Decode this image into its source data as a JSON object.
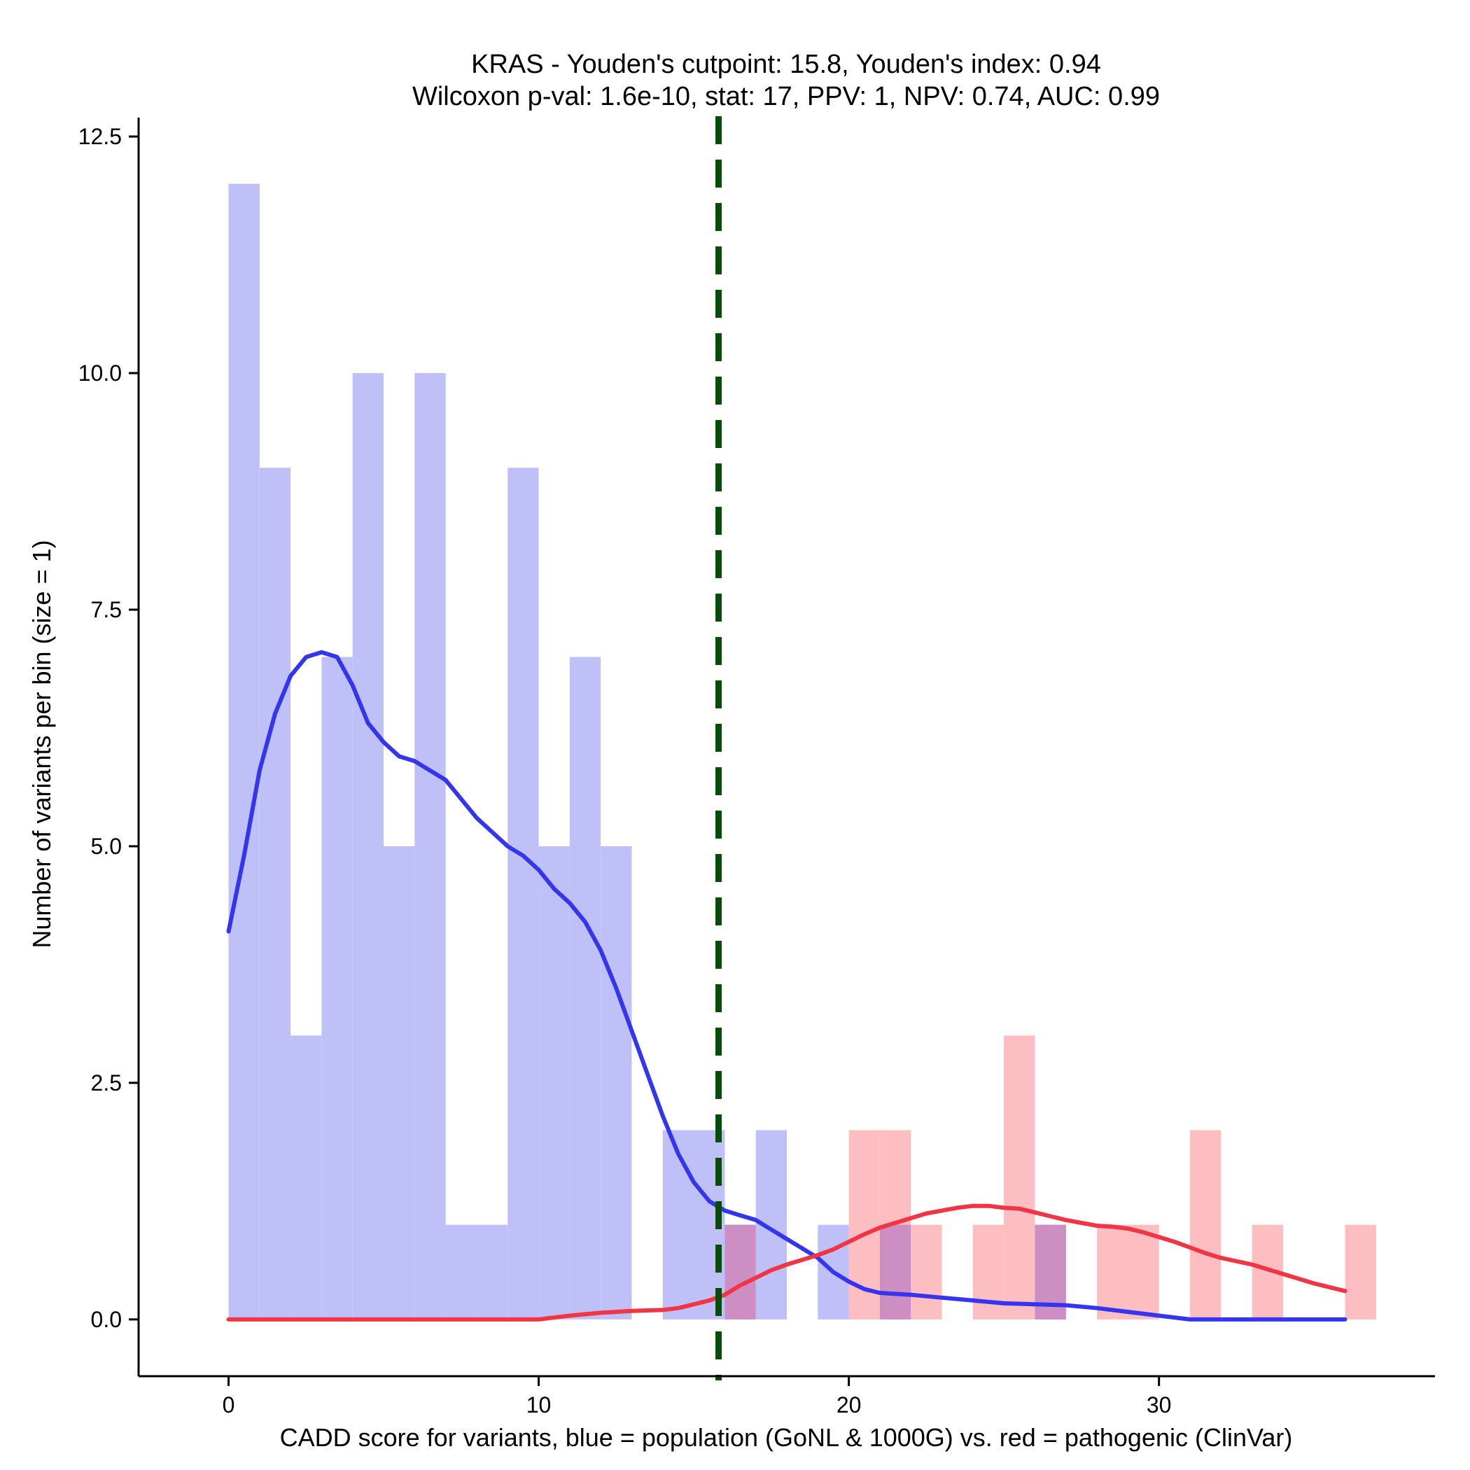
{
  "chart_data": {
    "type": "bar",
    "title_line1": "KRAS - Youden's cutpoint: 15.8, Youden's index: 0.94",
    "title_line2": "Wilcoxon p-val: 1.6e-10, stat: 17, PPV: 1, NPV: 0.74, AUC: 0.99",
    "xlabel": "CADD score for variants, blue = population (GoNL & 1000G) vs. red = pathogenic (ClinVar)",
    "ylabel": "Number of variants per bin (size = 1)",
    "xlim": [
      -2.9,
      38.9
    ],
    "ylim": [
      -0.6,
      12.7
    ],
    "x_ticks": [
      0,
      10,
      20,
      30
    ],
    "x_tick_labels": [
      "0",
      "10",
      "20",
      "30"
    ],
    "y_ticks": [
      0,
      2.5,
      5,
      7.5,
      10,
      12.5
    ],
    "y_tick_labels": [
      "0.0",
      "2.5",
      "5.0",
      "7.5",
      "10.0",
      "12.5"
    ],
    "bin_size": 1,
    "cutpoint": 15.8,
    "colors": {
      "population_bar": "#c0c0f8",
      "pathogenic_bar": "#fdbec2",
      "overlap_bar": "#cd8fc3",
      "population_line": "#3535ee",
      "pathogenic_line": "#f03545",
      "cutpoint_line": "#0a4a0a"
    },
    "series": [
      {
        "name": "population (GoNL & 1000G)",
        "bins": [
          {
            "x": 0,
            "count": 12
          },
          {
            "x": 1,
            "count": 9
          },
          {
            "x": 2,
            "count": 3
          },
          {
            "x": 3,
            "count": 7
          },
          {
            "x": 4,
            "count": 10
          },
          {
            "x": 5,
            "count": 5
          },
          {
            "x": 6,
            "count": 10
          },
          {
            "x": 7,
            "count": 1
          },
          {
            "x": 8,
            "count": 1
          },
          {
            "x": 9,
            "count": 9
          },
          {
            "x": 10,
            "count": 5
          },
          {
            "x": 11,
            "count": 7
          },
          {
            "x": 12,
            "count": 5
          },
          {
            "x": 14,
            "count": 2
          },
          {
            "x": 15,
            "count": 2
          },
          {
            "x": 16,
            "count": 1
          },
          {
            "x": 17,
            "count": 2
          },
          {
            "x": 19,
            "count": 1
          },
          {
            "x": 21,
            "count": 1
          },
          {
            "x": 26,
            "count": 1
          }
        ],
        "density_curve": [
          [
            0,
            4.1
          ],
          [
            0.5,
            4.9
          ],
          [
            1,
            5.8
          ],
          [
            1.5,
            6.4
          ],
          [
            2,
            6.8
          ],
          [
            2.5,
            7.0
          ],
          [
            3,
            7.05
          ],
          [
            3.5,
            7.0
          ],
          [
            4,
            6.7
          ],
          [
            4.5,
            6.3
          ],
          [
            5,
            6.1
          ],
          [
            5.5,
            5.95
          ],
          [
            6,
            5.9
          ],
          [
            6.5,
            5.8
          ],
          [
            7,
            5.7
          ],
          [
            7.5,
            5.5
          ],
          [
            8,
            5.3
          ],
          [
            8.5,
            5.15
          ],
          [
            9,
            5.0
          ],
          [
            9.5,
            4.9
          ],
          [
            10,
            4.75
          ],
          [
            10.5,
            4.55
          ],
          [
            11,
            4.4
          ],
          [
            11.5,
            4.2
          ],
          [
            12,
            3.9
          ],
          [
            12.5,
            3.5
          ],
          [
            13,
            3.05
          ],
          [
            13.5,
            2.6
          ],
          [
            14,
            2.15
          ],
          [
            14.5,
            1.75
          ],
          [
            15,
            1.45
          ],
          [
            15.5,
            1.25
          ],
          [
            16,
            1.15
          ],
          [
            16.5,
            1.1
          ],
          [
            17,
            1.05
          ],
          [
            17.5,
            0.95
          ],
          [
            18,
            0.85
          ],
          [
            18.5,
            0.75
          ],
          [
            19,
            0.65
          ],
          [
            19.5,
            0.5
          ],
          [
            20,
            0.4
          ],
          [
            20.5,
            0.32
          ],
          [
            21,
            0.28
          ],
          [
            21.5,
            0.27
          ],
          [
            22,
            0.26
          ],
          [
            23,
            0.23
          ],
          [
            24,
            0.2
          ],
          [
            25,
            0.17
          ],
          [
            26,
            0.16
          ],
          [
            27,
            0.15
          ],
          [
            28,
            0.12
          ],
          [
            29,
            0.08
          ],
          [
            30,
            0.04
          ],
          [
            31,
            0.0
          ],
          [
            32,
            0.0
          ],
          [
            33,
            0.0
          ],
          [
            34,
            0.0
          ],
          [
            35,
            0.0
          ],
          [
            36,
            0.0
          ]
        ]
      },
      {
        "name": "pathogenic (ClinVar)",
        "bins": [
          {
            "x": 16,
            "count": 1
          },
          {
            "x": 20,
            "count": 2
          },
          {
            "x": 21,
            "count": 2
          },
          {
            "x": 22,
            "count": 1
          },
          {
            "x": 24,
            "count": 1
          },
          {
            "x": 25,
            "count": 3
          },
          {
            "x": 26,
            "count": 1
          },
          {
            "x": 28,
            "count": 1
          },
          {
            "x": 29,
            "count": 1
          },
          {
            "x": 31,
            "count": 2
          },
          {
            "x": 33,
            "count": 1
          },
          {
            "x": 36,
            "count": 1
          }
        ],
        "density_curve": [
          [
            0,
            0.0
          ],
          [
            2,
            0.0
          ],
          [
            4,
            0.0
          ],
          [
            6,
            0.0
          ],
          [
            8,
            0.0
          ],
          [
            10,
            0.0
          ],
          [
            10.5,
            0.02
          ],
          [
            11,
            0.04
          ],
          [
            12,
            0.07
          ],
          [
            13,
            0.09
          ],
          [
            14,
            0.1
          ],
          [
            14.5,
            0.12
          ],
          [
            15,
            0.16
          ],
          [
            15.5,
            0.2
          ],
          [
            16,
            0.26
          ],
          [
            16.5,
            0.36
          ],
          [
            17,
            0.44
          ],
          [
            17.5,
            0.52
          ],
          [
            18,
            0.58
          ],
          [
            18.5,
            0.63
          ],
          [
            19,
            0.68
          ],
          [
            19.5,
            0.74
          ],
          [
            20,
            0.82
          ],
          [
            20.5,
            0.9
          ],
          [
            21,
            0.97
          ],
          [
            21.5,
            1.02
          ],
          [
            22,
            1.07
          ],
          [
            22.5,
            1.12
          ],
          [
            23,
            1.15
          ],
          [
            23.5,
            1.18
          ],
          [
            24,
            1.2
          ],
          [
            24.5,
            1.2
          ],
          [
            25,
            1.18
          ],
          [
            25.5,
            1.17
          ],
          [
            26,
            1.13
          ],
          [
            26.5,
            1.09
          ],
          [
            27,
            1.05
          ],
          [
            27.5,
            1.02
          ],
          [
            28,
            0.99
          ],
          [
            28.5,
            0.98
          ],
          [
            29,
            0.96
          ],
          [
            29.5,
            0.92
          ],
          [
            30,
            0.87
          ],
          [
            30.5,
            0.82
          ],
          [
            31,
            0.76
          ],
          [
            31.5,
            0.7
          ],
          [
            32,
            0.65
          ],
          [
            33,
            0.58
          ],
          [
            34,
            0.48
          ],
          [
            35,
            0.38
          ],
          [
            36,
            0.3
          ]
        ]
      }
    ]
  }
}
